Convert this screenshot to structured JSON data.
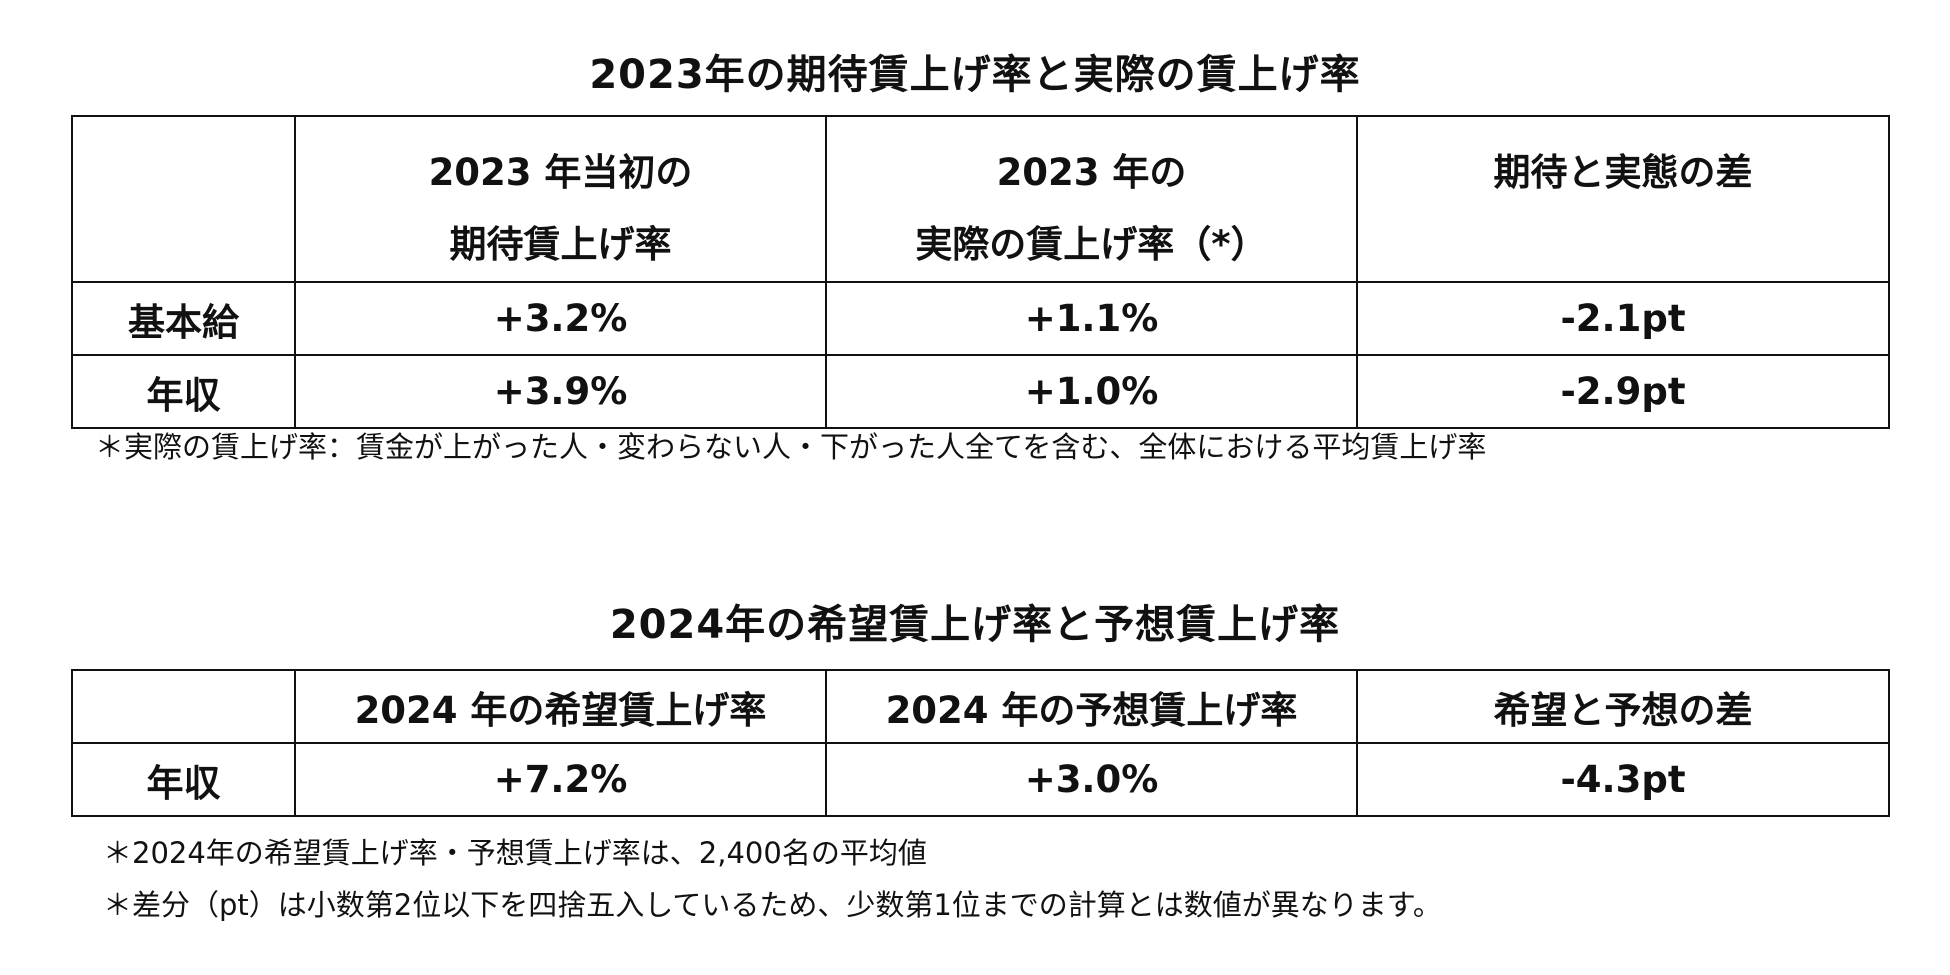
{
  "table1": {
    "title": "2023年の期待賃上げ率と実際の賃上げ率",
    "headers": [
      {
        "line1": "",
        "line2": ""
      },
      {
        "line1": "2023 年当初の",
        "line2": "期待賃上げ率"
      },
      {
        "line1": "2023 年の",
        "line2": "実際の賃上げ率（*）"
      },
      {
        "line1": "期待と実態の差",
        "line2": ""
      }
    ],
    "rows": [
      {
        "label": "基本給",
        "cells": [
          "+3.2%",
          "+1.1%",
          "-2.1pt"
        ]
      },
      {
        "label": "年収",
        "cells": [
          "+3.9%",
          "+1.0%",
          "-2.9pt"
        ]
      }
    ],
    "note": "＊実際の賃上げ率：賃金が上がった人・変わらない人・下がった人全てを含む、全体における平均賃上げ率"
  },
  "table2": {
    "title": "2024年の希望賃上げ率と予想賃上げ率",
    "headers": [
      "",
      "2024 年の希望賃上げ率",
      "2024 年の予想賃上げ率",
      "希望と予想の差"
    ],
    "rows": [
      {
        "label": "年収",
        "cells": [
          "+7.2%",
          "+3.0%",
          "-4.3pt"
        ]
      }
    ],
    "notes": [
      "＊2024年の希望賃上げ率・予想賃上げ率は、2,400名の平均値",
      "＊差分（pt）は小数第2位以下を四捨五入しているため、少数第1位までの計算とは数値が異なります。"
    ]
  }
}
